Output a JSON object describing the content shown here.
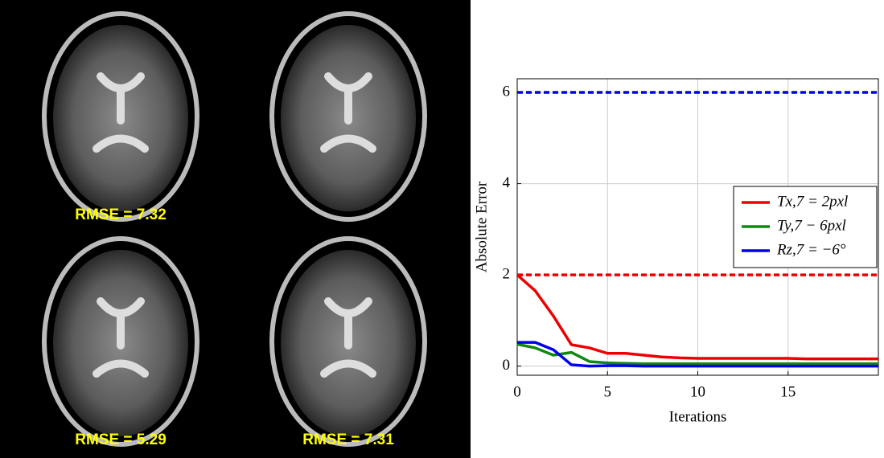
{
  "image_labels": [
    "RMSE = 7.32",
    "RMSE = 5.29",
    "RMSE = 7.31"
  ],
  "chart_data": {
    "type": "line",
    "x_label": "Iterations",
    "y_label": "Absolute Error",
    "x": [
      0,
      1,
      2,
      3,
      4,
      5,
      6,
      7,
      8,
      9,
      10,
      11,
      12,
      13,
      14,
      15,
      16,
      17,
      18,
      19,
      20
    ],
    "series": [
      {
        "name": "Tx,7 = 2pxl",
        "color": "#ee0000",
        "values": [
          2.0,
          1.65,
          1.1,
          0.47,
          0.4,
          0.28,
          0.28,
          0.24,
          0.2,
          0.18,
          0.17,
          0.17,
          0.17,
          0.17,
          0.17,
          0.17,
          0.16,
          0.16,
          0.16,
          0.16,
          0.16
        ]
      },
      {
        "name": "Ty,7 − 6pxl",
        "color": "#118811",
        "values": [
          0.48,
          0.4,
          0.24,
          0.3,
          0.1,
          0.07,
          0.06,
          0.05,
          0.05,
          0.05,
          0.05,
          0.05,
          0.05,
          0.05,
          0.05,
          0.05,
          0.05,
          0.05,
          0.05,
          0.05,
          0.05
        ]
      },
      {
        "name": "Rz,7 = −6°",
        "color": "#0000ee",
        "values": [
          0.52,
          0.52,
          0.36,
          0.03,
          0.0,
          0.01,
          0.01,
          0.0,
          0.0,
          0.0,
          0.0,
          0.0,
          0.0,
          0.0,
          0.0,
          0.0,
          0.0,
          0.0,
          0.0,
          0.0,
          0.0
        ]
      }
    ],
    "reference_lines": [
      {
        "value": 6,
        "color": "#0000ee"
      },
      {
        "value": 2,
        "color": "#ee0000"
      }
    ],
    "xlim": [
      0,
      20
    ],
    "ylim": [
      -0.2,
      6.3
    ],
    "xticks": [
      0,
      5,
      10,
      15
    ],
    "yticks": [
      0,
      2,
      4,
      6
    ],
    "grid": true,
    "legend": "right"
  }
}
